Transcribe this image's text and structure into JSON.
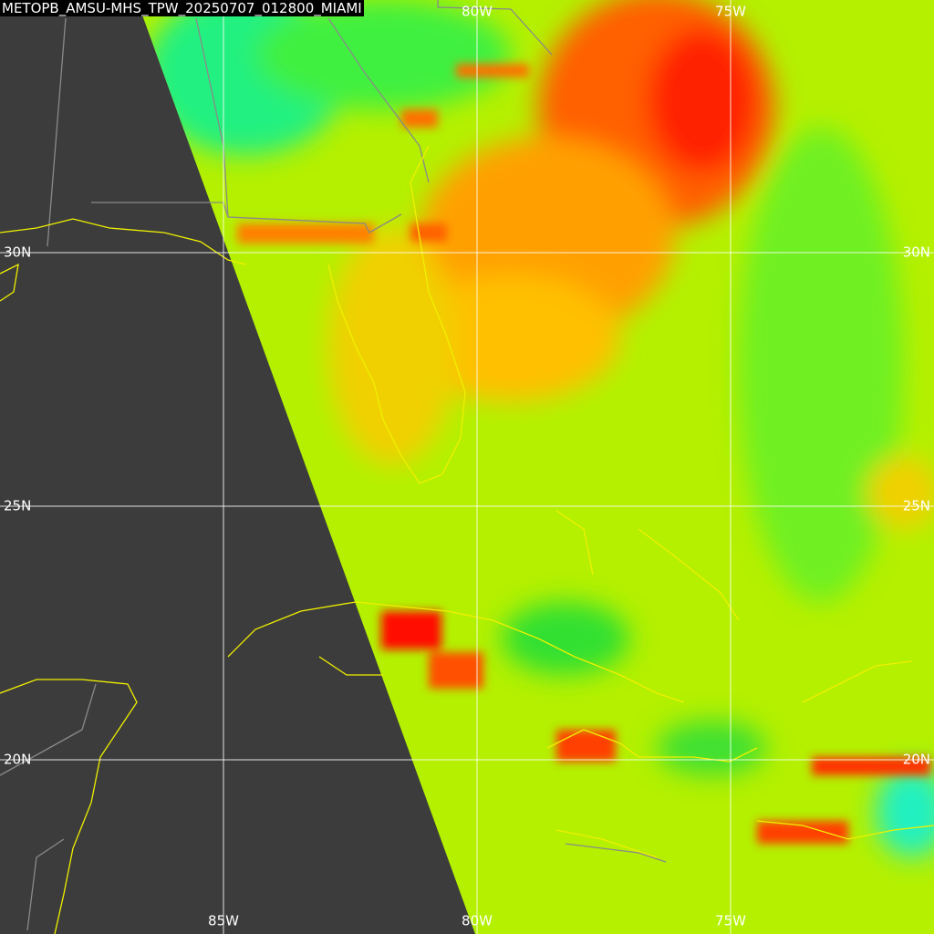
{
  "title": "METOPB_AMSU-MHS_TPW_20250707_012800_MIAMI",
  "labels": {
    "top": [
      "80W",
      "75W"
    ],
    "bottom": [
      "85W",
      "80W",
      "75W"
    ],
    "left": [
      "30N",
      "25N",
      "20N"
    ],
    "right": [
      "30N",
      "25N",
      "20N"
    ]
  }
}
